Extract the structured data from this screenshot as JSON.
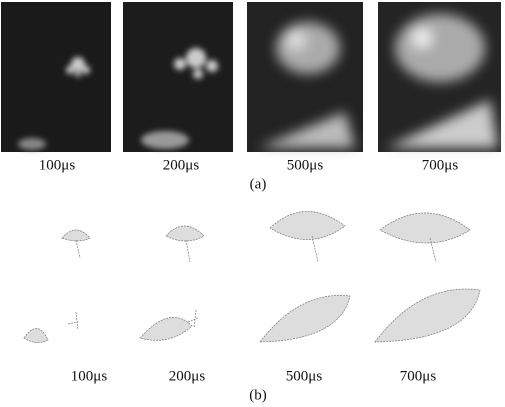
{
  "figure": {
    "a": {
      "labels": [
        "100μs",
        "200μs",
        "500μs",
        "700μs"
      ],
      "caption": "(a)"
    },
    "b": {
      "labels": [
        "100μs",
        "200μs",
        "500μs",
        "700μs"
      ],
      "caption": "(b)"
    }
  }
}
